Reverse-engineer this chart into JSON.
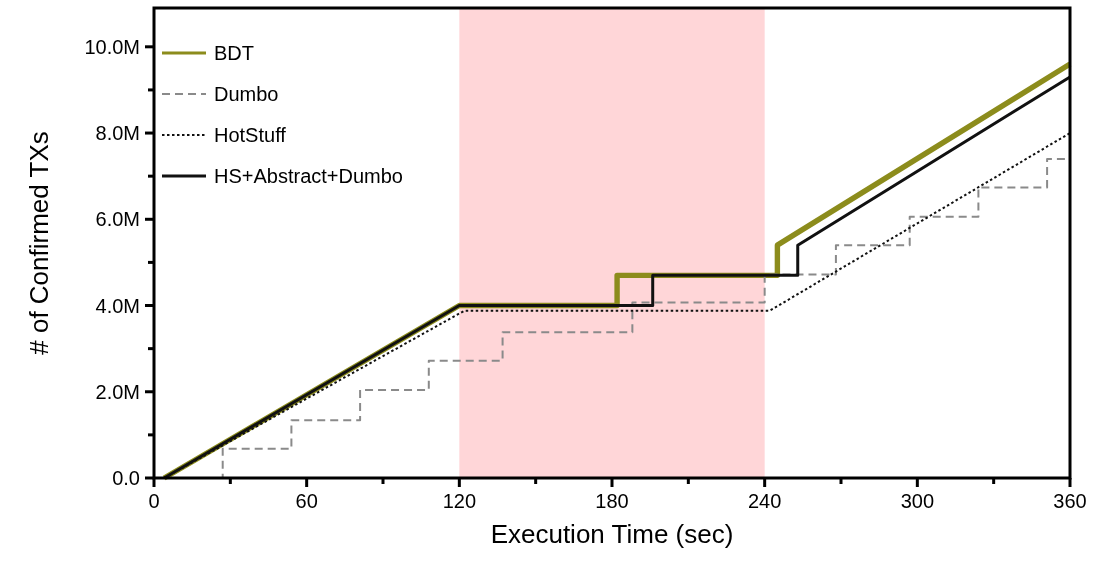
{
  "chart_data": {
    "type": "line",
    "xlabel": "Execution Time (sec)",
    "ylabel": "# of Confirmed TXs",
    "xlim": [
      0,
      360
    ],
    "ylim": [
      0,
      10.9
    ],
    "xticks": [
      0,
      {
        "value": 30,
        "label": null
      },
      60,
      {
        "value": 90,
        "label": null
      },
      120,
      {
        "value": 150,
        "label": null
      },
      180,
      {
        "value": 210,
        "label": null
      },
      240,
      {
        "value": 270,
        "label": null
      },
      300,
      {
        "value": 330,
        "label": null
      },
      360
    ],
    "yticks": [
      {
        "value": 0,
        "label": "0.0"
      },
      {
        "value": 1,
        "label": null
      },
      {
        "value": 2,
        "label": "2.0M"
      },
      {
        "value": 3,
        "label": null
      },
      {
        "value": 4,
        "label": "4.0M"
      },
      {
        "value": 5,
        "label": null
      },
      {
        "value": 6,
        "label": "6.0M"
      },
      {
        "value": 7,
        "label": null
      },
      {
        "value": 8,
        "label": "8.0M"
      },
      {
        "value": 9,
        "label": null
      },
      {
        "value": 10,
        "label": "10.0M"
      }
    ],
    "grid": false,
    "legend": "top left",
    "bands": [
      {
        "axis": "x",
        "from": 120,
        "to": 240,
        "color": "#ffd6d8"
      }
    ],
    "series": [
      {
        "name": "BDT",
        "color": "#8c8c1c",
        "line_style": "solid",
        "x": [
          4,
          120,
          182,
          182,
          245,
          245,
          360
        ],
        "values": [
          0,
          4.0,
          4.0,
          4.7,
          4.7,
          5.4,
          9.6
        ]
      },
      {
        "name": "Dumbo",
        "type": "step",
        "color": "#8a8a8a",
        "line_style": "dashed",
        "x": [
          0,
          27,
          54,
          81,
          108,
          137,
          188,
          240,
          268,
          297,
          324,
          351,
          360
        ],
        "values": [
          0,
          0.68,
          1.34,
          2.04,
          2.72,
          3.38,
          4.07,
          4.72,
          5.4,
          6.06,
          6.74,
          7.4,
          7.4
        ]
      },
      {
        "name": "HotStuff",
        "color": "#111111",
        "line_style": "dotted",
        "x": [
          4,
          122,
          242,
          360
        ],
        "values": [
          0,
          3.88,
          3.88,
          8.0
        ]
      },
      {
        "name": "HS+Abstract+Dumbo",
        "color": "#111111",
        "line_style": "solid",
        "x": [
          4,
          120,
          196,
          196,
          253,
          253,
          360
        ],
        "values": [
          0,
          4.0,
          4.0,
          4.7,
          4.7,
          5.4,
          9.3
        ]
      }
    ]
  }
}
